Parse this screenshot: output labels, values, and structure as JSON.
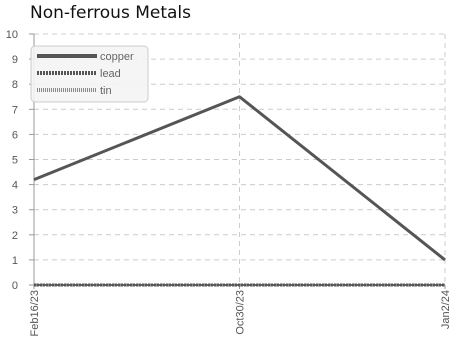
{
  "chart_data": {
    "type": "line",
    "title": "Non-ferrous Metals",
    "x": [
      "Feb16/23",
      "Oct30/23",
      "Jan2/24"
    ],
    "ylim": [
      0,
      10
    ],
    "yticks": [
      0,
      1,
      2,
      3,
      4,
      5,
      6,
      7,
      8,
      9,
      10
    ],
    "grid": true,
    "legend_position": "top-left",
    "series": [
      {
        "name": "copper",
        "values": [
          4.2,
          7.5,
          1.0
        ],
        "color": "#555555",
        "style": "solid"
      },
      {
        "name": "lead",
        "values": [
          0,
          0,
          0
        ],
        "color": "#555555",
        "style": "dotted"
      },
      {
        "name": "tin",
        "values": [
          0,
          0,
          0
        ],
        "color": "#888888",
        "style": "dotted"
      }
    ]
  }
}
